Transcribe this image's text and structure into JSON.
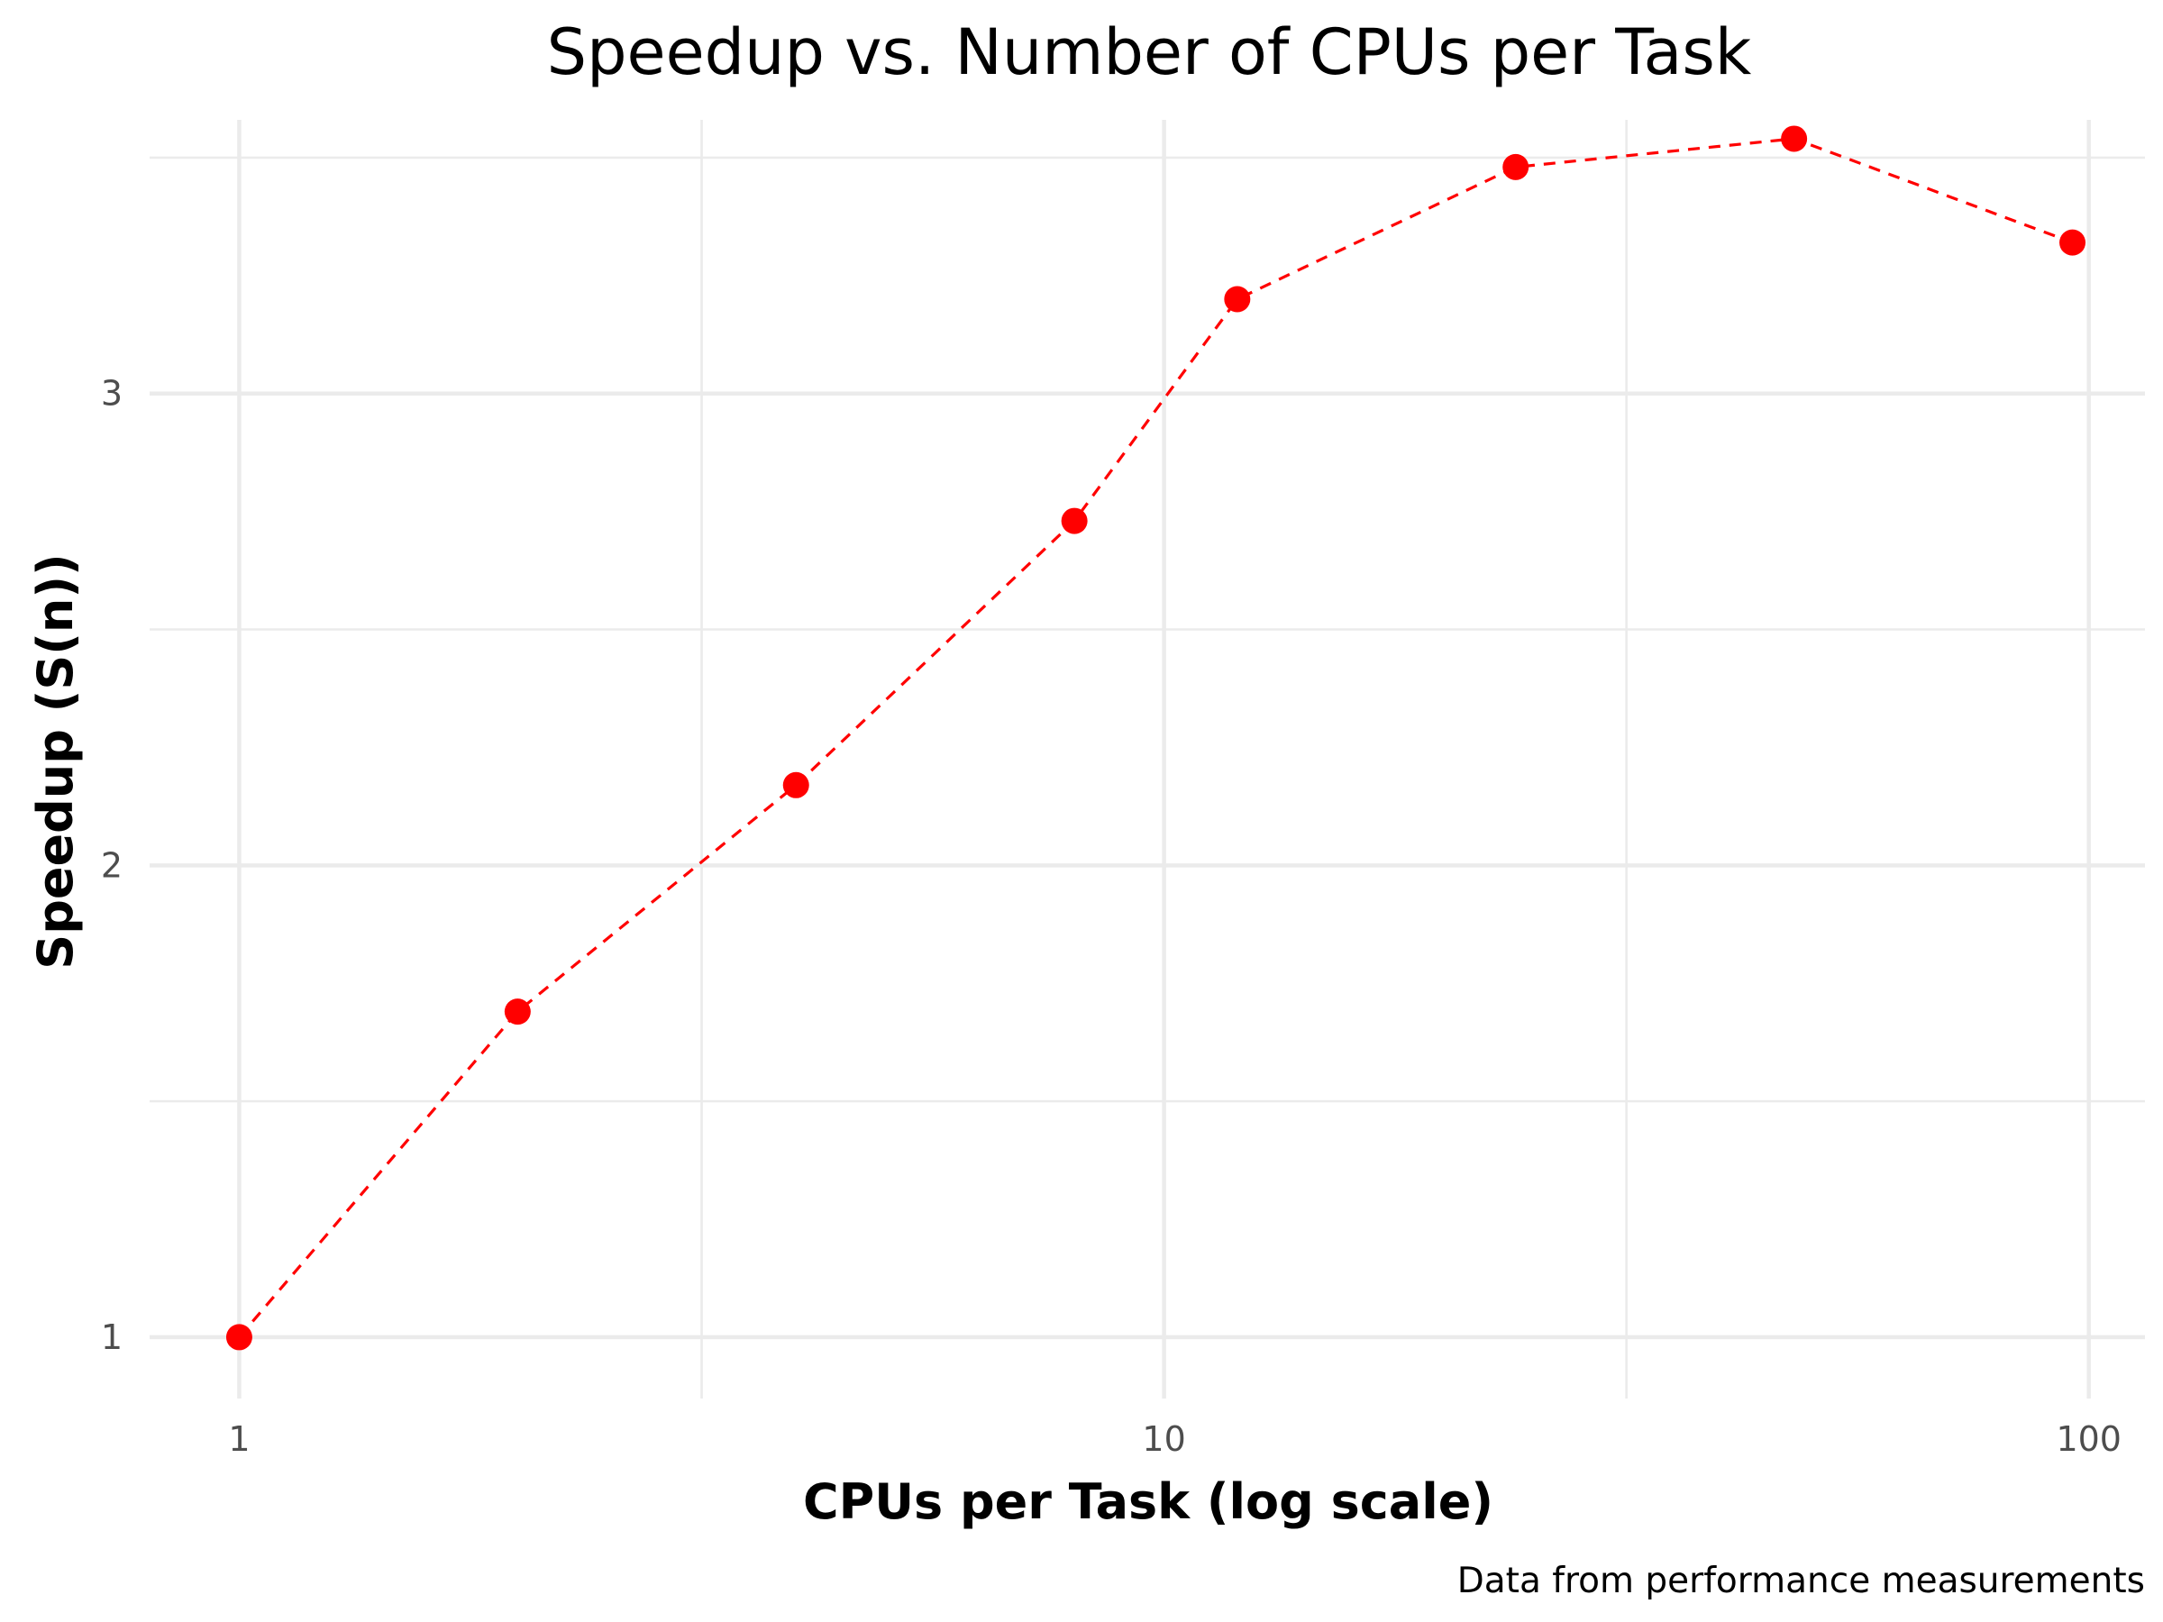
{
  "chart_data": {
    "type": "line",
    "title": "Speedup vs. Number of CPUs per Task",
    "xlabel": "CPUs per Task (log scale)",
    "ylabel": "Speedup (S(n))",
    "caption": "Data from performance measurements",
    "x_scale": "log10",
    "xlim": [
      0.8,
      115
    ],
    "ylim": [
      0.87,
      3.58
    ],
    "x_ticks": [
      1,
      10,
      100
    ],
    "x_tick_labels": [
      "1",
      "10",
      "100"
    ],
    "x_minor_ticks": [
      3.1623,
      31.623
    ],
    "y_ticks": [
      1,
      2,
      3
    ],
    "y_tick_labels": [
      "1",
      "2",
      "3"
    ],
    "y_minor_ticks": [
      1.5,
      2.5,
      3.5
    ],
    "grid": true,
    "line_style": "dashed",
    "series": [
      {
        "x": [
          1,
          2,
          4,
          8,
          12,
          24,
          48,
          96
        ],
        "y": [
          1.0,
          1.69,
          2.17,
          2.73,
          3.2,
          3.48,
          3.54,
          3.32
        ],
        "color": "#ff0000"
      }
    ]
  }
}
